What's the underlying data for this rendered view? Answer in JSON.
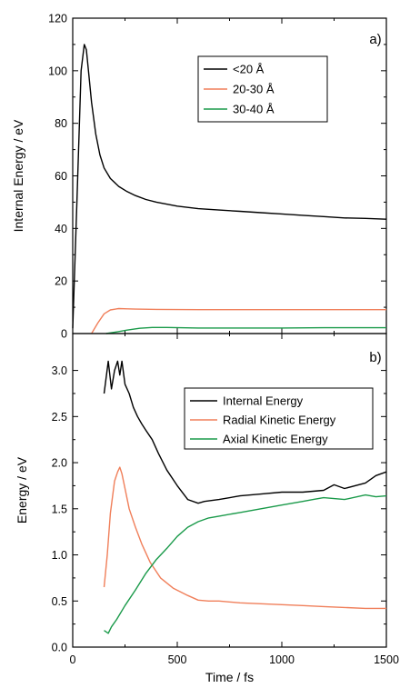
{
  "chart_data": [
    {
      "type": "line",
      "panel_label": "a)",
      "xlabel": "",
      "ylabel": "Internal Energy / eV",
      "xlim": [
        0,
        1500
      ],
      "ylim": [
        0,
        120
      ],
      "yticks": [
        0,
        20,
        40,
        60,
        80,
        100,
        120
      ],
      "yticklabels": [
        "0",
        "20",
        "40",
        "60",
        "80",
        "100",
        "120"
      ],
      "legend_position": "top-right",
      "series": [
        {
          "name": "<20 Å",
          "color": "#000000",
          "x": [
            0,
            20,
            40,
            55,
            65,
            75,
            90,
            110,
            130,
            150,
            180,
            220,
            260,
            300,
            350,
            400,
            500,
            600,
            700,
            800,
            900,
            1000,
            1100,
            1200,
            1300,
            1400,
            1500
          ],
          "y": [
            2,
            50,
            100,
            110,
            108,
            100,
            88,
            76,
            68,
            63,
            59,
            56,
            54,
            52.5,
            51,
            50,
            48.5,
            47.5,
            47,
            46.5,
            46,
            45.5,
            45,
            44.5,
            44,
            43.8,
            43.5
          ]
        },
        {
          "name": "20-30 Å",
          "color": "#f07f5a",
          "x": [
            90,
            120,
            150,
            180,
            220,
            260,
            300,
            400,
            600,
            800,
            1000,
            1200,
            1500
          ],
          "y": [
            0,
            4,
            7.5,
            9,
            9.5,
            9.4,
            9.3,
            9.2,
            9.1,
            9.1,
            9.1,
            9.1,
            9.1
          ]
        },
        {
          "name": "30-40 Å",
          "color": "#1a9a4a",
          "x": [
            160,
            200,
            260,
            320,
            380,
            450,
            600,
            700,
            800,
            1000,
            1200,
            1500
          ],
          "y": [
            0,
            0.5,
            1.3,
            2,
            2.3,
            2.3,
            2.1,
            2.1,
            2.1,
            2.1,
            2.2,
            2.2
          ]
        }
      ]
    },
    {
      "type": "line",
      "panel_label": "b)",
      "xlabel": "Time / fs",
      "ylabel": "Energy / eV",
      "xlim": [
        0,
        1500
      ],
      "ylim": [
        0,
        3.4
      ],
      "xticks": [
        0,
        500,
        1000,
        1500
      ],
      "xticklabels": [
        "0",
        "500",
        "1000",
        "1500"
      ],
      "yticks": [
        0,
        0.5,
        1.0,
        1.5,
        2.0,
        2.5,
        3.0
      ],
      "yticklabels": [
        "0.0",
        "0.5",
        "1.0",
        "1.5",
        "2.0",
        "2.5",
        "3.0"
      ],
      "legend_position": "top-right",
      "series": [
        {
          "name": "Internal Energy",
          "color": "#000000",
          "x": [
            150,
            170,
            185,
            200,
            215,
            225,
            235,
            250,
            270,
            290,
            310,
            330,
            350,
            380,
            410,
            450,
            500,
            550,
            600,
            630,
            700,
            800,
            900,
            1000,
            1100,
            1200,
            1250,
            1300,
            1400,
            1450,
            1500
          ],
          "y": [
            2.75,
            3.1,
            2.8,
            3.0,
            3.1,
            2.95,
            3.1,
            2.85,
            2.75,
            2.6,
            2.5,
            2.42,
            2.35,
            2.25,
            2.1,
            1.92,
            1.75,
            1.6,
            1.56,
            1.58,
            1.6,
            1.64,
            1.66,
            1.68,
            1.68,
            1.7,
            1.76,
            1.72,
            1.78,
            1.86,
            1.9
          ]
        },
        {
          "name": "Radial Kinetic Energy",
          "color": "#f07f5a",
          "x": [
            150,
            165,
            180,
            200,
            215,
            225,
            235,
            250,
            270,
            300,
            330,
            370,
            420,
            480,
            550,
            600,
            650,
            700,
            800,
            900,
            1000,
            1100,
            1200,
            1300,
            1400,
            1500
          ],
          "y": [
            0.65,
            1.0,
            1.45,
            1.8,
            1.9,
            1.95,
            1.88,
            1.72,
            1.5,
            1.3,
            1.12,
            0.92,
            0.75,
            0.64,
            0.56,
            0.51,
            0.5,
            0.5,
            0.48,
            0.47,
            0.46,
            0.45,
            0.44,
            0.43,
            0.42,
            0.42
          ]
        },
        {
          "name": "Axial Kinetic Energy",
          "color": "#1a9a4a",
          "x": [
            150,
            170,
            185,
            210,
            250,
            300,
            350,
            400,
            450,
            500,
            550,
            600,
            650,
            700,
            800,
            900,
            1000,
            1100,
            1150,
            1200,
            1300,
            1400,
            1450,
            1500
          ],
          "y": [
            0.18,
            0.15,
            0.22,
            0.3,
            0.45,
            0.62,
            0.8,
            0.95,
            1.07,
            1.2,
            1.3,
            1.36,
            1.4,
            1.42,
            1.46,
            1.5,
            1.54,
            1.58,
            1.6,
            1.62,
            1.6,
            1.65,
            1.63,
            1.64
          ]
        }
      ]
    }
  ]
}
